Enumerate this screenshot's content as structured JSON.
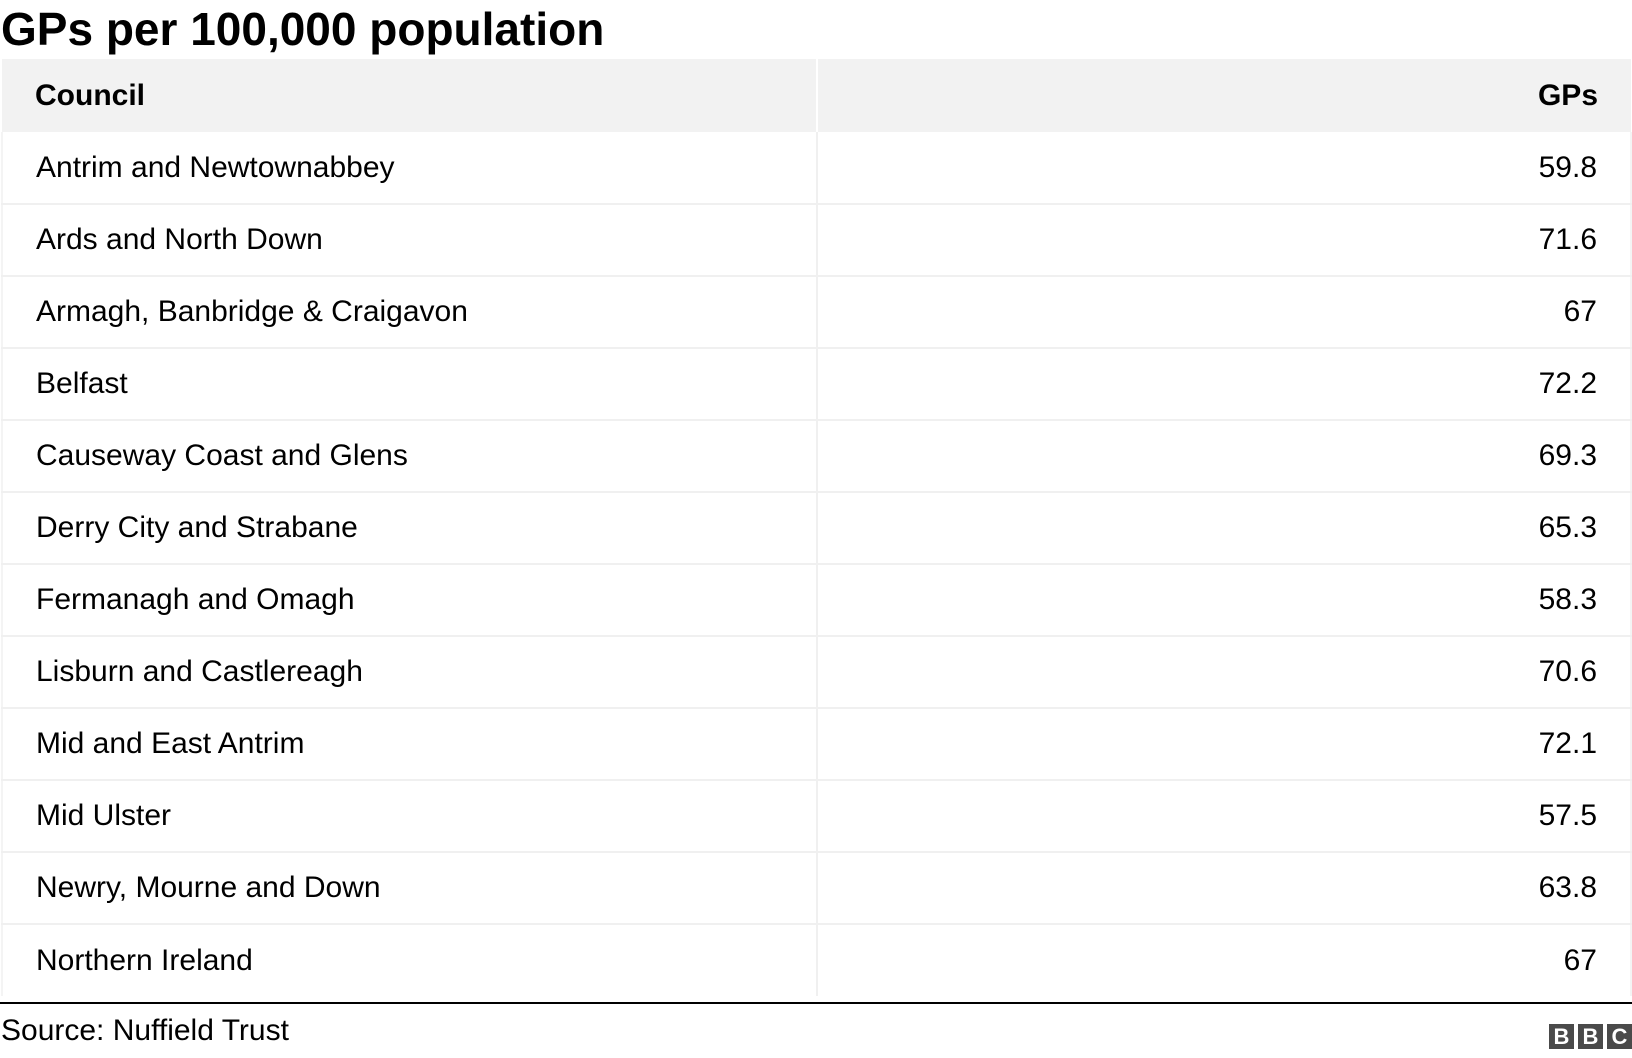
{
  "title": "GPs per 100,000 population",
  "source": "Source: Nuffield Trust",
  "logo": {
    "letters": [
      "B",
      "B",
      "C"
    ],
    "color": "#4a4a4a"
  },
  "chart_data": {
    "type": "table",
    "title": "GPs per 100,000 population",
    "columns": [
      "Council",
      "GPs"
    ],
    "rows": [
      {
        "council": "Antrim and Newtownabbey",
        "gps": "59.8"
      },
      {
        "council": "Ards and North Down",
        "gps": "71.6"
      },
      {
        "council": "Armagh, Banbridge & Craigavon",
        "gps": "67"
      },
      {
        "council": "Belfast",
        "gps": "72.2"
      },
      {
        "council": "Causeway Coast and Glens",
        "gps": "69.3"
      },
      {
        "council": "Derry City and Strabane",
        "gps": "65.3"
      },
      {
        "council": "Fermanagh and Omagh",
        "gps": "58.3"
      },
      {
        "council": "Lisburn and Castlereagh",
        "gps": "70.6"
      },
      {
        "council": "Mid and East Antrim",
        "gps": "72.1"
      },
      {
        "council": "Mid Ulster",
        "gps": "57.5"
      },
      {
        "council": "Newry, Mourne and Down",
        "gps": "63.8"
      },
      {
        "council": "Northern Ireland",
        "gps": "67"
      }
    ],
    "header_background": "#f2f2f2"
  }
}
